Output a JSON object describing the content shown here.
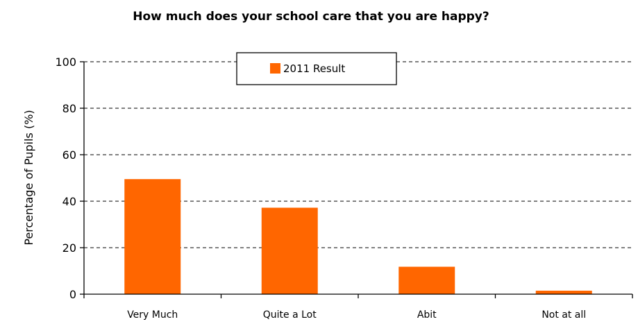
{
  "chart_data": {
    "type": "bar",
    "title": "How much does your school care that you are happy?",
    "ylabel": "Percentage of Pupils (%)",
    "xlabel": "",
    "categories": [
      "Very Much",
      "Quite a Lot",
      "Abit",
      "Not at all"
    ],
    "series": [
      {
        "name": "2011 Result",
        "values": [
          49.5,
          37.2,
          11.8,
          1.5
        ],
        "color": "#ff6600"
      }
    ],
    "ylim": [
      0,
      100
    ],
    "yticks": [
      0,
      20,
      40,
      60,
      80,
      100
    ],
    "grid": true,
    "legend": "top-center"
  }
}
